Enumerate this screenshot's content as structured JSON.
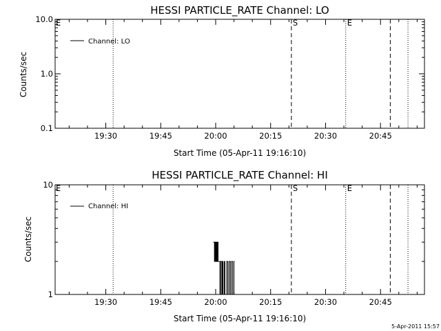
{
  "footer_timestamp": "5-Apr-2011 15:57",
  "chart_data": [
    {
      "type": "line",
      "title": "HESSI PARTICLE_RATE Channel: LO",
      "xlabel": "Start Time (05-Apr-11 19:16:10)",
      "ylabel": "Counts/sec",
      "y_scale": "log",
      "ylim": [
        0.1,
        10.0
      ],
      "xlim": [
        "19:16:10",
        "20:57:00"
      ],
      "x_ticks": [
        "19:30",
        "19:45",
        "20:00",
        "20:15",
        "20:30",
        "20:45"
      ],
      "y_ticks": [
        "0.1",
        "1.0",
        "10.0"
      ],
      "legend_position": "top-left",
      "grid": false,
      "series": [
        {
          "name": "Channel: LO",
          "x": [],
          "y": []
        }
      ],
      "event_lines": [
        {
          "time": "19:32:00",
          "style": "dotted",
          "label": ""
        },
        {
          "time": "20:20:40",
          "style": "dashed",
          "label": "S"
        },
        {
          "time": "20:35:30",
          "style": "dotted",
          "label": "E"
        },
        {
          "time": "20:47:40",
          "style": "dashed",
          "label": ""
        },
        {
          "time": "20:52:30",
          "style": "dotted",
          "label": ""
        }
      ],
      "start_marker": {
        "time": "19:16:10",
        "label": "E"
      }
    },
    {
      "type": "line",
      "title": "HESSI PARTICLE_RATE Channel: HI",
      "xlabel": "Start Time (05-Apr-11 19:16:10)",
      "ylabel": "Counts/sec",
      "y_scale": "log",
      "ylim": [
        1,
        10
      ],
      "xlim": [
        "19:16:10",
        "20:57:00"
      ],
      "x_ticks": [
        "19:30",
        "19:45",
        "20:00",
        "20:15",
        "20:30",
        "20:45"
      ],
      "y_ticks": [
        "1",
        "10"
      ],
      "legend_position": "top-left",
      "grid": false,
      "series": [
        {
          "name": "Channel: HI",
          "x": [
            "19:59:20",
            "19:59:20",
            "19:59:40",
            "19:59:40",
            "19:59:50",
            "19:59:50",
            "20:00:00",
            "20:00:00",
            "20:00:10",
            "20:00:10",
            "20:00:20",
            "20:00:20",
            "20:00:30",
            "20:00:30",
            "20:00:40",
            "20:00:40",
            "20:01:10",
            "20:01:10",
            "20:01:20",
            "20:01:20",
            "20:01:40",
            "20:01:40",
            "20:01:50",
            "20:01:50",
            "20:02:00",
            "20:02:00",
            "20:02:20",
            "20:02:20",
            "20:02:30",
            "20:02:30",
            "20:03:00",
            "20:03:00",
            "20:03:20",
            "20:03:20",
            "20:03:40",
            "20:03:40",
            "20:04:00",
            "20:04:00",
            "20:04:20",
            "20:04:20",
            "20:04:40",
            "20:04:40",
            "20:05:00",
            "20:05:00",
            "20:05:10"
          ],
          "y": [
            3,
            3,
            3,
            2,
            2,
            3,
            3,
            2,
            2,
            3,
            3,
            2,
            2,
            3,
            3,
            2,
            2,
            1,
            1,
            2,
            2,
            1,
            1,
            2,
            2,
            1,
            1,
            2,
            2,
            1,
            1,
            2,
            2,
            1,
            1,
            2,
            2,
            1,
            1,
            2,
            2,
            1,
            1,
            2,
            2
          ]
        }
      ],
      "event_lines": [
        {
          "time": "19:32:00",
          "style": "dotted",
          "label": ""
        },
        {
          "time": "20:20:40",
          "style": "dashed",
          "label": "S"
        },
        {
          "time": "20:35:30",
          "style": "dotted",
          "label": "E"
        },
        {
          "time": "20:47:40",
          "style": "dashed",
          "label": ""
        },
        {
          "time": "20:52:30",
          "style": "dotted",
          "label": ""
        }
      ],
      "start_marker": {
        "time": "19:16:10",
        "label": "E"
      }
    }
  ]
}
